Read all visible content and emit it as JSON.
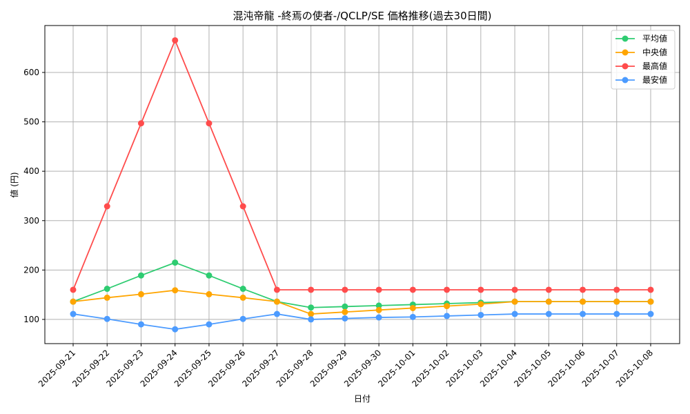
{
  "chart_data": {
    "type": "line",
    "title": "混沌帝龍 -終焉の使者-/QCLP/SE 価格推移(過去30日間)",
    "xlabel": "日付",
    "ylabel": "値 (円)",
    "ylim": [
      51,
      695
    ],
    "yticks": [
      100,
      200,
      300,
      400,
      500,
      600
    ],
    "grid": true,
    "legend_position": "upper right",
    "categories": [
      "2025-09-21",
      "2025-09-22",
      "2025-09-23",
      "2025-09-24",
      "2025-09-25",
      "2025-09-26",
      "2025-09-27",
      "2025-09-28",
      "2025-09-29",
      "2025-09-30",
      "2025-10-01",
      "2025-10-02",
      "2025-10-03",
      "2025-10-04",
      "2025-10-05",
      "2025-10-06",
      "2025-10-07",
      "2025-10-08"
    ],
    "series": [
      {
        "name": "平均値",
        "color": "#2ecc71",
        "values": [
          136,
          162,
          189,
          215,
          189,
          162,
          136,
          124,
          126,
          128,
          130,
          132,
          134,
          136,
          136,
          136,
          136,
          136
        ]
      },
      {
        "name": "中央値",
        "color": "#ffa500",
        "values": [
          136,
          144,
          151,
          159,
          151,
          144,
          136,
          111,
          115,
          119,
          123,
          127,
          131,
          136,
          136,
          136,
          136,
          136
        ]
      },
      {
        "name": "最高値",
        "color": "#ff4c4c",
        "values": [
          160,
          329,
          497,
          665,
          497,
          329,
          160,
          160,
          160,
          160,
          160,
          160,
          160,
          160,
          160,
          160,
          160,
          160
        ]
      },
      {
        "name": "最安値",
        "color": "#4c9bff",
        "values": [
          111,
          101,
          90,
          80,
          90,
          101,
          111,
          100,
          102,
          104,
          105,
          107,
          109,
          111,
          111,
          111,
          111,
          111
        ]
      }
    ]
  }
}
